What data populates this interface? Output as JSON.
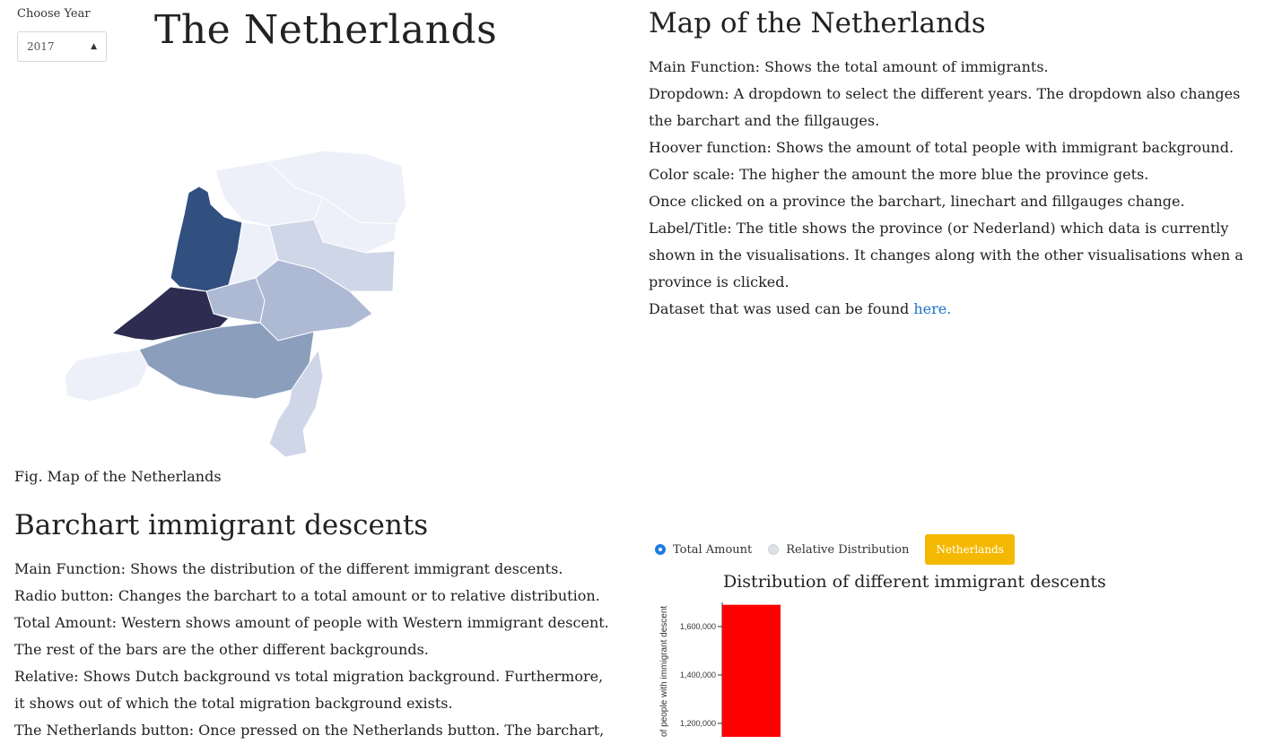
{
  "year_selector": {
    "label": "Choose Year",
    "selected": "2017"
  },
  "page_title": "The Netherlands",
  "map": {
    "caption": "Fig. Map of the Netherlands",
    "colors": {
      "darkest": "#2f2c52",
      "dark": "#314f7f",
      "mid": "#8b9fbd",
      "light": "#aebad4",
      "lighter": "#cfd6e7",
      "lightest": "#eef0f9"
    }
  },
  "map_section": {
    "heading": "Map of the Netherlands",
    "lines": [
      "Main Function: Shows the total amount of immigrants.",
      "Dropdown: A dropdown to select the different years. The dropdown also changes the barchart and the fillgauges.",
      "Hoover function: Shows the amount of total people with immigrant background.",
      "Color scale: The higher the amount the more blue the province gets.",
      "Once clicked on a province the barchart, linechart and fillgauges change.",
      "Label/Title: The title shows the province (or Nederland) which data is currently shown in the visualisations. It changes along with the other visualisations when a province is clicked."
    ],
    "dataset_text": "Dataset that was used can be found ",
    "dataset_link": "here."
  },
  "bar_section": {
    "heading": "Barchart immigrant descents",
    "lines": [
      "Main Function: Shows the distribution of the different immigrant descents.",
      "Radio button: Changes the barchart to a total amount or to relative distribution.",
      "Total Amount: Western shows amount of people with Western immigrant descent. The rest of the bars are the other different backgrounds.",
      "Relative: Shows Dutch background vs total migration background. Furthermore, it shows out of which the total migration background exists.",
      "The Netherlands button: Once pressed on the Netherlands button. The barchart,"
    ]
  },
  "controls": {
    "radio_total": "Total Amount",
    "radio_relative": "Relative Distribution",
    "button": "Netherlands",
    "button_color": "#f5b800"
  },
  "chart_data": {
    "type": "bar",
    "title": "Distribution of different immigrant descents",
    "ylabel": "of people with immigrant descent",
    "ylim": [
      1100000,
      1700000
    ],
    "yticks": [
      "1,600,000",
      "1,400,000",
      "1,200,000"
    ],
    "ytick_values": [
      1600000,
      1400000,
      1200000
    ],
    "values": [
      1690000
    ],
    "bar_color": "#ff0000"
  }
}
